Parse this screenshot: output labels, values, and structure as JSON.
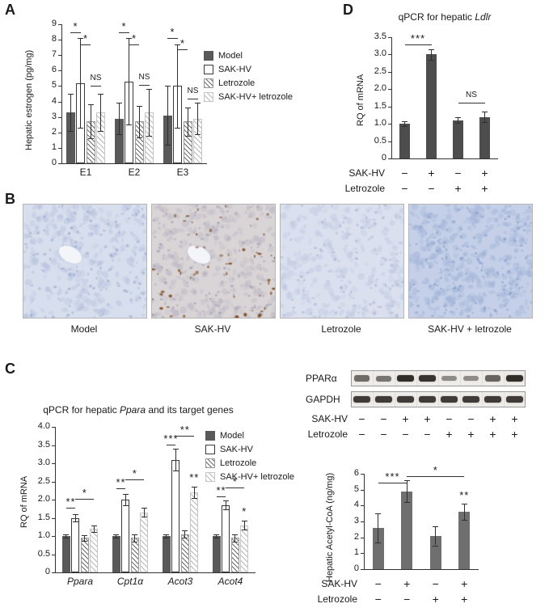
{
  "panels": {
    "a": "A",
    "b": "B",
    "c": "C",
    "d": "D"
  },
  "legend": {
    "items": [
      {
        "label": "Model",
        "style": "solid"
      },
      {
        "label": "SAK-HV",
        "style": "open"
      },
      {
        "label": "Letrozole",
        "style": "hatch"
      },
      {
        "label": "SAK-HV+ letrozole",
        "style": "hatch-light"
      }
    ]
  },
  "panelB": {
    "images": [
      {
        "label": "Model",
        "bg": "#d7deed",
        "cell": "#b3bfdd",
        "nucleus": "#8fa0c8",
        "cells": 240,
        "nuclei": 130,
        "vessel": true,
        "spot_color": "",
        "spots": 0
      },
      {
        "label": "SAK-HV",
        "bg": "#d9d5d6",
        "cell": "#b7b2c2",
        "nucleus": "#9492ae",
        "cells": 240,
        "nuclei": 130,
        "vessel": true,
        "spot_color": "#7d4418",
        "spots": 55
      },
      {
        "label": "Letrozole",
        "bg": "#dae0ee",
        "cell": "#bcc6e0",
        "nucleus": "#9dabce",
        "cells": 230,
        "nuclei": 110,
        "vessel": false,
        "spot_color": "",
        "spots": 0
      },
      {
        "label": "SAK-HV + letrozole",
        "bg": "#c5d0e8",
        "cell": "#9db0d6",
        "nucleus": "#7e93c4",
        "cells": 330,
        "nuclei": 160,
        "vessel": false,
        "spot_color": "",
        "spots": 0
      }
    ]
  },
  "blot": {
    "rows": [
      {
        "label": "PPARα",
        "intensities": [
          0.55,
          0.5,
          0.95,
          0.9,
          0.35,
          0.35,
          0.6,
          0.95
        ]
      },
      {
        "label": "GAPDH",
        "intensities": [
          0.85,
          0.85,
          0.85,
          0.85,
          0.85,
          0.85,
          0.85,
          0.85
        ]
      }
    ],
    "xrows": [
      {
        "label": "SAK-HV",
        "values": [
          "−",
          "−",
          "+",
          "+",
          "−",
          "−",
          "+",
          "+"
        ]
      },
      {
        "label": "Letrozole",
        "values": [
          "−",
          "−",
          "−",
          "−",
          "+",
          "+",
          "+",
          "+"
        ]
      }
    ]
  },
  "chart_data": [
    {
      "type": "bar",
      "id": "hepatic-estrogen",
      "ylabel": "Hepatic estrogen (pg/mg)",
      "ylim": [
        0,
        9
      ],
      "ytick": 1,
      "categories": [
        "E1",
        "E2",
        "E3"
      ],
      "series": [
        {
          "name": "Model",
          "values": [
            3.3,
            2.9,
            3.1
          ],
          "errors": [
            1.2,
            1.0,
            1.9
          ]
        },
        {
          "name": "SAK-HV",
          "values": [
            5.2,
            5.3,
            5.0
          ],
          "errors": [
            2.9,
            2.8,
            2.7
          ]
        },
        {
          "name": "Letrozole",
          "values": [
            2.7,
            2.7,
            2.7
          ],
          "errors": [
            1.1,
            1.0,
            0.9
          ]
        },
        {
          "name": "SAK-HV+ letrozole",
          "values": [
            3.3,
            3.3,
            2.9
          ],
          "errors": [
            1.2,
            1.5,
            1.0
          ]
        }
      ],
      "sig": [
        {
          "cat": 0,
          "from": 0,
          "to": 1,
          "label": "*",
          "y": 8.5
        },
        {
          "cat": 0,
          "from": 1,
          "to": 2,
          "label": "*",
          "y": 7.7
        },
        {
          "cat": 0,
          "from": 2,
          "to": 3,
          "label": "NS",
          "y": 5.0
        },
        {
          "cat": 1,
          "from": 0,
          "to": 1,
          "label": "*",
          "y": 8.5
        },
        {
          "cat": 1,
          "from": 1,
          "to": 2,
          "label": "*",
          "y": 7.7
        },
        {
          "cat": 1,
          "from": 2,
          "to": 3,
          "label": "NS",
          "y": 5.1
        },
        {
          "cat": 2,
          "from": 0,
          "to": 1,
          "label": "*",
          "y": 8.1
        },
        {
          "cat": 2,
          "from": 1,
          "to": 2,
          "label": "*",
          "y": 7.4
        },
        {
          "cat": 2,
          "from": 2,
          "to": 3,
          "label": "NS",
          "y": 4.2
        }
      ]
    },
    {
      "type": "bar",
      "id": "ldlr-qpcr",
      "title_pre": "qPCR for hepatic ",
      "title_italic": "Ldlr",
      "ylabel": "RQ of mRNA",
      "ylim": [
        0,
        3.5
      ],
      "ytick": 0.5,
      "values": [
        1.0,
        3.0,
        1.1,
        1.2
      ],
      "errors": [
        0.07,
        0.15,
        0.08,
        0.15
      ],
      "sig": [
        {
          "from": 0,
          "to": 1,
          "label": "***",
          "y": 3.3
        },
        {
          "from": 2,
          "to": 3,
          "label": "NS",
          "y": 1.6
        }
      ],
      "xrows": [
        {
          "label": "SAK-HV",
          "values": [
            "−",
            "+",
            "−",
            "+"
          ]
        },
        {
          "label": "Letrozole",
          "values": [
            "−",
            "−",
            "+",
            "+"
          ]
        }
      ]
    },
    {
      "type": "bar",
      "id": "ppara-target-genes-qpcr",
      "title_pre": "qPCR for hepatic ",
      "title_italic": "Ppara",
      "title_post": " and its target genes",
      "ylabel": "RQ of mRNA",
      "ylim": [
        0,
        4
      ],
      "ytick": 0.5,
      "categories": [
        "Ppara",
        "Cpt1α",
        "Acot3",
        "Acot4"
      ],
      "series": [
        {
          "name": "Model",
          "values": [
            1.0,
            1.0,
            1.0,
            1.0
          ],
          "errors": [
            0.05,
            0.05,
            0.05,
            0.05
          ]
        },
        {
          "name": "SAK-HV",
          "values": [
            1.5,
            2.0,
            3.1,
            1.85
          ],
          "errors": [
            0.1,
            0.15,
            0.3,
            0.12
          ]
        },
        {
          "name": "Letrozole",
          "values": [
            0.95,
            0.95,
            1.05,
            0.95
          ],
          "errors": [
            0.08,
            0.1,
            0.1,
            0.1
          ]
        },
        {
          "name": "SAK-HV+ letrozole",
          "values": [
            1.2,
            1.65,
            2.2,
            1.3
          ],
          "errors": [
            0.08,
            0.12,
            0.15,
            0.12
          ]
        }
      ],
      "sig": [
        {
          "cat": 0,
          "from": 0,
          "to": 1,
          "label": "**",
          "y": 1.78
        },
        {
          "cat": 0,
          "from": 1,
          "to": 3,
          "label": "*",
          "y": 2.02
        },
        {
          "cat": 1,
          "from": 0,
          "to": 1,
          "label": "**",
          "y": 2.32
        },
        {
          "cat": 1,
          "from": 1,
          "to": 3,
          "label": "*",
          "y": 2.56
        },
        {
          "cat": 2,
          "from": 0,
          "to": 1,
          "label": "***",
          "y": 3.52
        },
        {
          "cat": 2,
          "from": 1,
          "to": 3,
          "label": "**",
          "y": 3.76
        },
        {
          "cat": 2,
          "at": 3,
          "label": "**",
          "y": 2.5
        },
        {
          "cat": 3,
          "from": 0,
          "to": 1,
          "label": "**",
          "y": 2.1
        },
        {
          "cat": 3,
          "from": 1,
          "to": 3,
          "label": "*",
          "y": 2.34
        },
        {
          "cat": 3,
          "at": 3,
          "label": "*",
          "y": 1.56
        }
      ]
    },
    {
      "type": "bar",
      "id": "hepatic-acetyl-coa",
      "ylabel": "Hepatic Acetyl-CoA (ng/mg)",
      "ylim": [
        0,
        6
      ],
      "ytick": 1,
      "values": [
        2.6,
        4.9,
        2.1,
        3.6
      ],
      "errors": [
        0.9,
        0.7,
        0.6,
        0.5
      ],
      "sig": [
        {
          "from": 0,
          "to": 1,
          "label": "***",
          "y": 5.45
        },
        {
          "from": 1,
          "to": 3,
          "label": "*",
          "y": 5.85
        },
        {
          "at": 3,
          "label": "**",
          "y": 4.35
        }
      ],
      "xrows": [
        {
          "label": "SAK-HV",
          "values": [
            "−",
            "+",
            "−",
            "+"
          ]
        },
        {
          "label": "Letrozole",
          "values": [
            "−",
            "−",
            "+",
            "+"
          ]
        }
      ]
    }
  ]
}
